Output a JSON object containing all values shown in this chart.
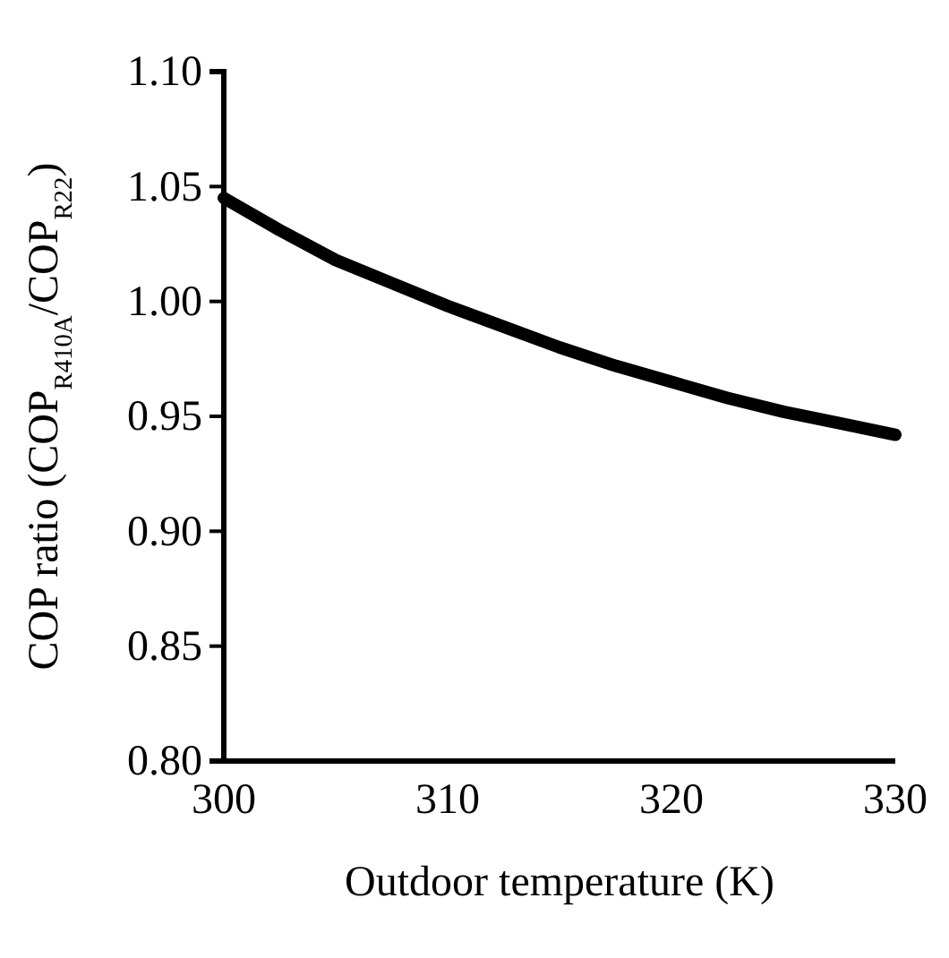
{
  "chart_data": {
    "type": "line",
    "xlabel": "Outdoor temperature (K)",
    "ylabel": "COP ratio (COP$_{R410A}$/COP$_{R22}$)",
    "x": [
      300,
      302.5,
      305,
      307.5,
      310,
      312.5,
      315,
      317.5,
      320,
      322.5,
      325,
      327.5,
      330
    ],
    "series": [
      {
        "color": "#000000",
        "values": [
          1.045,
          1.031,
          1.018,
          1.008,
          0.998,
          0.989,
          0.98,
          0.972,
          0.965,
          0.958,
          0.952,
          0.947,
          0.942
        ]
      }
    ],
    "xlim": [
      300,
      330
    ],
    "ylim": [
      0.8,
      1.1
    ],
    "xticks": [
      300,
      310,
      320,
      330
    ],
    "yticks": [
      {
        "value": 0.8,
        "label": "0.80"
      },
      {
        "value": 0.85,
        "label": "0.85"
      },
      {
        "value": 0.9,
        "label": "0.90"
      },
      {
        "value": 0.95,
        "label": "0.95"
      },
      {
        "value": 1.0,
        "label": "1.00"
      },
      {
        "value": 1.05,
        "label": "1.05"
      },
      {
        "value": 1.1,
        "label": "1.10"
      }
    ],
    "marker": "none",
    "line_style": "solid"
  }
}
